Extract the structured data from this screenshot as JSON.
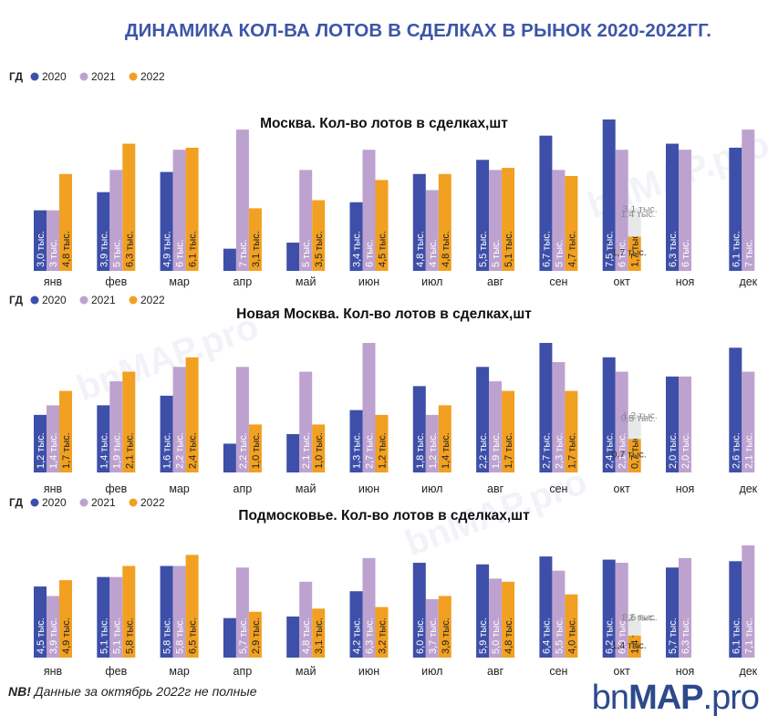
{
  "title": "ДИНАМИКА КОЛ-ВА ЛОТОВ В СДЕЛКАХ В РЫНОК 2020-2022ГГ.",
  "footnote": {
    "bold": "NB!",
    "text": " Данные за октябрь 2022г не полные"
  },
  "logo": {
    "prefix": "bn",
    "main": "MAP",
    "suffix": ".pro"
  },
  "watermark": "bnMAP.pro",
  "colors": {
    "2020": "#3d4fa8",
    "2021": "#bda2cf",
    "2022": "#f1a021",
    "October2022Projection": "#e8e8e8"
  },
  "chart_data": [
    {
      "type": "bar",
      "title": "Москва. Кол-во лотов в сделках,шт",
      "legend": {
        "prefix": "ГД",
        "placement": "top-left"
      },
      "categories": [
        "янв",
        "фев",
        "мар",
        "апр",
        "май",
        "июн",
        "июл",
        "авг",
        "сен",
        "окт",
        "ноя",
        "дек"
      ],
      "series": [
        {
          "name": "2020",
          "values": [
            3.0,
            3.9,
            4.9,
            1.1,
            1.4,
            3.4,
            4.8,
            5.5,
            6.7,
            7.5,
            6.3,
            6.1
          ],
          "labels": [
            "3,0 тыс.",
            "3,9 тыс.",
            "4,9 тыс.",
            "",
            "",
            "3,4 тыс.",
            "4,8 тыс.",
            "5,5 тыс.",
            "6,7 тыс.",
            "7,5 тыс.",
            "6,3 тыс.",
            "6,1 тыс."
          ]
        },
        {
          "name": "2021",
          "values": [
            3,
            5,
            6,
            7,
            5,
            6,
            4,
            5,
            5,
            6,
            6,
            7
          ],
          "labels": [
            "3 тыс.",
            "5 тыс.",
            "6 тыс.",
            "7 тыс.",
            "5 тыс.",
            "6 тыс.",
            "4 тыс.",
            "5 тыс.",
            "5 тыс.",
            "6 тыс.",
            "6 тыс.",
            "7 тыс."
          ]
        },
        {
          "name": "2022",
          "values": [
            4.8,
            6.3,
            6.1,
            3.1,
            3.5,
            4.5,
            4.8,
            5.1,
            4.7,
            1.7,
            null,
            null
          ],
          "labels": [
            "4,8 тыс.",
            "6,3 тыс.",
            "6,1 тыс.",
            "3,1 тыс.",
            "3,5 тыс.",
            "4,5 тыс.",
            "4,8 тыс.",
            "5,1 тыс.",
            "4,7 тыс.",
            "1,7 тыс.",
            "",
            ""
          ]
        }
      ],
      "october_2022_stack": [
        {
          "value": 1.7,
          "label": "1,7 тыс."
        },
        {
          "value": 1.4,
          "label": "1,4 тыс."
        },
        {
          "value": 3.1,
          "label": "3,1 тыс."
        }
      ]
    },
    {
      "type": "bar",
      "title": "Новая Москва. Кол-во лотов в сделках,шт",
      "legend": {
        "prefix": "ГД",
        "placement": "top-left"
      },
      "categories": [
        "янв",
        "фев",
        "мар",
        "апр",
        "май",
        "июн",
        "июл",
        "авг",
        "сен",
        "окт",
        "ноя",
        "дек"
      ],
      "series": [
        {
          "name": "2020",
          "values": [
            1.2,
            1.4,
            1.6,
            0.6,
            0.8,
            1.3,
            1.8,
            2.2,
            2.7,
            2.4,
            2.0,
            2.6
          ],
          "labels": [
            "1,2 тыс.",
            "1,4 тыс.",
            "1,6 тыс.",
            "",
            "",
            "1,3 тыс.",
            "1,8 тыс.",
            "2,2 тыс.",
            "2,7 тыс.",
            "2,4 тыс.",
            "2,0 тыс.",
            "2,6 тыс."
          ]
        },
        {
          "name": "2021",
          "values": [
            1.4,
            1.9,
            2.2,
            2.2,
            2.1,
            2.7,
            1.2,
            1.9,
            2.3,
            2.1,
            2.0,
            2.1
          ],
          "labels": [
            "1,4 тыс.",
            "1,9 тыс.",
            "2,2 тыс.",
            "2,2 тыс.",
            "2,1 тыс.",
            "2,7 тыс.",
            "1,2 тыс.",
            "1,9 тыс.",
            "2,3 тыс.",
            "2,1 тыс.",
            "2,0 тыс.",
            "2,1 тыс."
          ]
        },
        {
          "name": "2022",
          "values": [
            1.7,
            2.1,
            2.4,
            1.0,
            1.0,
            1.2,
            1.4,
            1.7,
            1.7,
            0.7,
            null,
            null
          ],
          "labels": [
            "1,7 тыс.",
            "2,1 тыс.",
            "2,4 тыс.",
            "1,0 тыс.",
            "1,0 тыс.",
            "1,2 тыс.",
            "1,4 тыс.",
            "1,7 тыс.",
            "1,7 тыс.",
            "0,7 тыс.",
            "",
            ""
          ]
        }
      ],
      "october_2022_stack": [
        {
          "value": 0.7,
          "label": "0,7 тыс."
        },
        {
          "value": 0.5,
          "label": "0,5 тыс."
        },
        {
          "value": 1.2,
          "label": "1,2 тыс."
        }
      ]
    },
    {
      "type": "bar",
      "title": "Подмосковье. Кол-во лотов в сделках,шт",
      "legend": {
        "prefix": "ГД",
        "placement": "top-left"
      },
      "categories": [
        "янв",
        "фев",
        "мар",
        "апр",
        "май",
        "июн",
        "июл",
        "авг",
        "сен",
        "окт",
        "ноя",
        "дек"
      ],
      "series": [
        {
          "name": "2020",
          "values": [
            4.5,
            5.1,
            5.8,
            2.5,
            2.6,
            4.2,
            6.0,
            5.9,
            6.4,
            6.2,
            5.7,
            6.1
          ],
          "labels": [
            "4,5 тыс.",
            "5,1 тыс.",
            "5,8 тыс.",
            "",
            "",
            "4,2 тыс.",
            "6,0 тыс.",
            "5,9 тыс.",
            "6,4 тыс.",
            "6,2 тыс.",
            "5,7 тыс.",
            "6,1 тыс."
          ]
        },
        {
          "name": "2021",
          "values": [
            3.9,
            5.1,
            5.8,
            5.7,
            4.8,
            6.3,
            3.7,
            5.0,
            5.5,
            6.0,
            6.3,
            7.1
          ],
          "labels": [
            "3,9 тыс.",
            "5,1 тыс.",
            "5,8 тыс.",
            "5,7 тыс.",
            "4,8 тыс.",
            "6,3 тыс.",
            "3,7 тыс.",
            "5,0 тыс.",
            "5,5 тыс.",
            "6,0 тыс.",
            "6,3 тыс.",
            "7,1 тыс."
          ]
        },
        {
          "name": "2022",
          "values": [
            4.9,
            5.8,
            6.5,
            2.9,
            3.1,
            3.2,
            3.9,
            4.8,
            4.0,
            1.4,
            null,
            null
          ],
          "labels": [
            "4,9 тыс.",
            "5,8 тыс.",
            "6,5 тыс.",
            "2,9 тыс.",
            "3,1 тыс.",
            "3,2 тыс.",
            "3,9 тыс.",
            "4,8 тыс.",
            "4,0 тыс.",
            "1,4 тыс.",
            "",
            ""
          ]
        }
      ],
      "october_2022_stack": [
        {
          "value": 1.4,
          "label": "1,4 тыс."
        },
        {
          "value": 1.2,
          "label": "1,2 тыс."
        },
        {
          "value": 2.6,
          "label": "2,6 тыс."
        }
      ]
    }
  ]
}
